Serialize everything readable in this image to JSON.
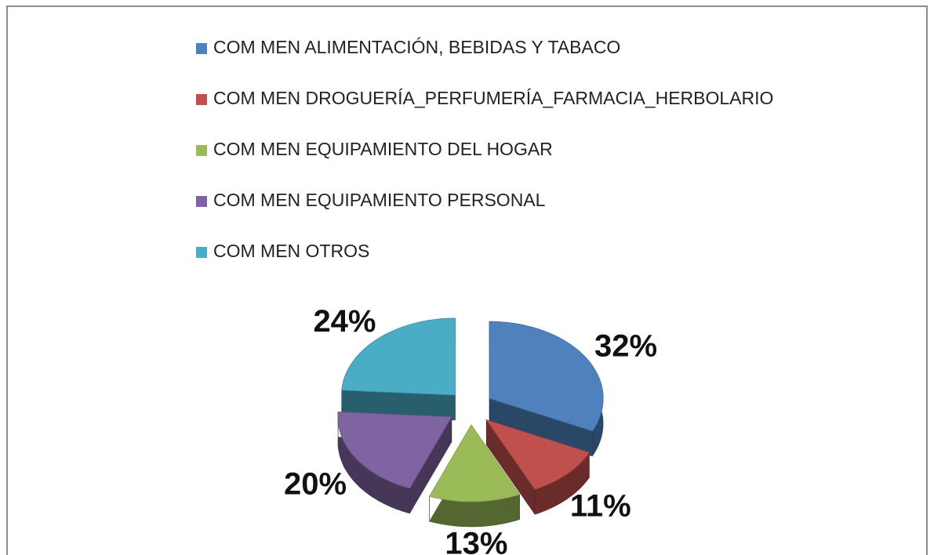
{
  "chart_data": {
    "type": "pie",
    "categories": [
      "COM MEN ALIMENTACIÓN, BEBIDAS Y TABACO",
      "COM MEN DROGUERÍA_PERFUMERÍA_FARMACIA_HERBOLARIO",
      "COM MEN EQUIPAMIENTO DEL HOGAR",
      "COM MEN EQUIPAMIENTO PERSONAL",
      "COM MEN OTROS"
    ],
    "values": [
      32,
      11,
      13,
      20,
      24
    ],
    "value_labels": [
      "32%",
      "11%",
      "13%",
      "20%",
      "24%"
    ],
    "colors": [
      "#4f81bd",
      "#c0504d",
      "#9bbb59",
      "#8064a2",
      "#4bacc6"
    ],
    "legend": "top"
  }
}
